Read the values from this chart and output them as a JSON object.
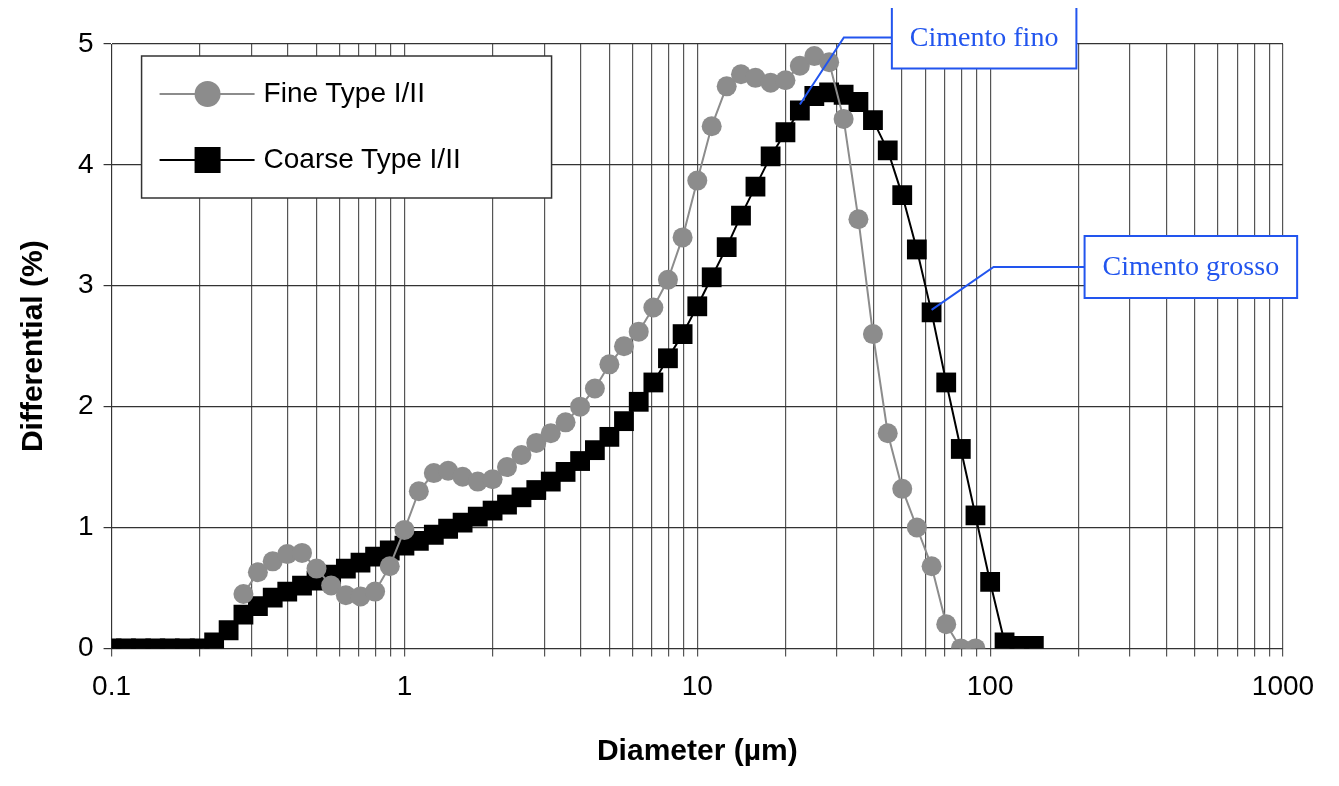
{
  "chart_data": {
    "type": "line",
    "xlabel": "Diameter (µm)",
    "ylabel": "Differential (%)",
    "log": "x",
    "grid": true,
    "legend": "top left",
    "line_style": "solid",
    "x": [
      0.1,
      0.112,
      0.126,
      0.141,
      0.158,
      0.178,
      0.2,
      0.224,
      0.251,
      0.282,
      0.316,
      0.355,
      0.398,
      0.447,
      0.501,
      0.562,
      0.631,
      0.708,
      0.794,
      0.891,
      1.0,
      1.12,
      1.26,
      1.41,
      1.58,
      1.78,
      2.0,
      2.24,
      2.51,
      2.82,
      3.16,
      3.55,
      3.98,
      4.47,
      5.01,
      5.62,
      6.31,
      7.08,
      7.94,
      8.91,
      10,
      11.2,
      12.6,
      14.1,
      15.8,
      17.8,
      20,
      22.4,
      25.1,
      28.2,
      31.6,
      35.5,
      39.8,
      44.7,
      50.1,
      56.2,
      63.1,
      70.8,
      79.4,
      89.1,
      100,
      112,
      126,
      141
    ],
    "series": [
      {
        "name": "Fine Type I/II",
        "color": "#8c8c8c",
        "marker": "circle",
        "values": [
          null,
          null,
          null,
          null,
          null,
          null,
          null,
          null,
          null,
          0.45,
          0.63,
          0.72,
          0.78,
          0.79,
          0.66,
          0.52,
          0.44,
          0.43,
          0.47,
          0.68,
          0.98,
          1.3,
          1.45,
          1.47,
          1.42,
          1.38,
          1.4,
          1.5,
          1.6,
          1.7,
          1.78,
          1.87,
          2.0,
          2.15,
          2.35,
          2.5,
          2.62,
          2.82,
          3.05,
          3.4,
          3.87,
          4.32,
          4.65,
          4.75,
          4.72,
          4.68,
          4.7,
          4.82,
          4.9,
          4.85,
          4.38,
          3.55,
          2.6,
          1.78,
          1.32,
          1.0,
          0.68,
          0.2,
          0.0,
          0.0,
          null,
          null,
          null,
          null
        ]
      },
      {
        "name": "Coarse Type I/II",
        "color": "#000000",
        "marker": "square",
        "values": [
          0,
          0,
          0,
          0,
          0,
          0,
          0,
          0.05,
          0.15,
          0.28,
          0.35,
          0.42,
          0.47,
          0.52,
          0.56,
          0.61,
          0.66,
          0.71,
          0.76,
          0.81,
          0.85,
          0.89,
          0.94,
          0.99,
          1.04,
          1.09,
          1.14,
          1.19,
          1.25,
          1.31,
          1.38,
          1.46,
          1.55,
          1.64,
          1.75,
          1.88,
          2.04,
          2.2,
          2.4,
          2.6,
          2.83,
          3.07,
          3.32,
          3.58,
          3.82,
          4.07,
          4.27,
          4.45,
          4.57,
          4.6,
          4.58,
          4.52,
          4.37,
          4.12,
          3.75,
          3.3,
          2.78,
          2.2,
          1.65,
          1.1,
          0.55,
          0.05,
          0.02,
          0.02
        ]
      }
    ],
    "xlim": [
      0.1,
      1000
    ],
    "ylim": [
      0,
      5
    ],
    "xticks": [
      0.1,
      {
        "value": 0.2,
        "label": null
      },
      {
        "value": 0.3,
        "label": null
      },
      {
        "value": 0.4,
        "label": null
      },
      {
        "value": 0.5,
        "label": null
      },
      {
        "value": 0.6,
        "label": null
      },
      {
        "value": 0.7,
        "label": null
      },
      {
        "value": 0.8,
        "label": null
      },
      {
        "value": 0.9,
        "label": null
      },
      1,
      {
        "value": 2,
        "label": null
      },
      {
        "value": 3,
        "label": null
      },
      {
        "value": 4,
        "label": null
      },
      {
        "value": 5,
        "label": null
      },
      {
        "value": 6,
        "label": null
      },
      {
        "value": 7,
        "label": null
      },
      {
        "value": 8,
        "label": null
      },
      {
        "value": 9,
        "label": null
      },
      10,
      {
        "value": 20,
        "label": null
      },
      {
        "value": 30,
        "label": null
      },
      {
        "value": 40,
        "label": null
      },
      {
        "value": 50,
        "label": null
      },
      {
        "value": 60,
        "label": null
      },
      {
        "value": 70,
        "label": null
      },
      {
        "value": 80,
        "label": null
      },
      {
        "value": 90,
        "label": null
      },
      100,
      {
        "value": 200,
        "label": null
      },
      {
        "value": 300,
        "label": null
      },
      {
        "value": 400,
        "label": null
      },
      {
        "value": 500,
        "label": null
      },
      {
        "value": 600,
        "label": null
      },
      {
        "value": 700,
        "label": null
      },
      {
        "value": 800,
        "label": null
      },
      {
        "value": 900,
        "label": null
      },
      1000
    ],
    "yticks": [
      0,
      1,
      2,
      3,
      4,
      5
    ],
    "annotations": [
      {
        "text": "Cimento fino",
        "x": 22.4,
        "y": 4.5
      },
      {
        "text": "Cimento grosso",
        "x": 63.1,
        "y": 2.8
      }
    ]
  }
}
